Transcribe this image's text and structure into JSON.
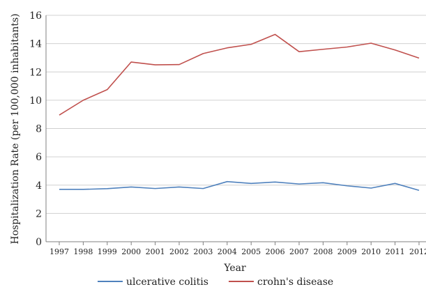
{
  "chart_data": {
    "type": "line",
    "title": "",
    "xlabel": "Year",
    "ylabel": "Hospitalization Rate (per 100,000 inhabitants)",
    "ylim": [
      0,
      16
    ],
    "yticks": [
      0,
      2,
      4,
      6,
      8,
      10,
      12,
      14,
      16
    ],
    "grid": "horizontal",
    "legend_position": "bottom",
    "categories": [
      "1997",
      "1998",
      "1999",
      "2000",
      "2001",
      "2002",
      "2003",
      "2004",
      "2005",
      "2006",
      "2007",
      "2008",
      "2009",
      "2010",
      "2011",
      "2012"
    ],
    "series": [
      {
        "name": "ulcerative colitis",
        "color": "#4f81bd",
        "values": [
          3.7,
          3.7,
          3.75,
          3.87,
          3.76,
          3.87,
          3.76,
          4.25,
          4.12,
          4.22,
          4.08,
          4.17,
          3.95,
          3.79,
          4.12,
          3.63
        ]
      },
      {
        "name": "crohn's disease",
        "color": "#c0504d",
        "values": [
          8.95,
          10.0,
          10.75,
          12.7,
          12.5,
          12.52,
          13.3,
          13.7,
          13.95,
          14.65,
          13.43,
          13.6,
          13.76,
          14.03,
          13.55,
          12.98
        ]
      }
    ]
  }
}
